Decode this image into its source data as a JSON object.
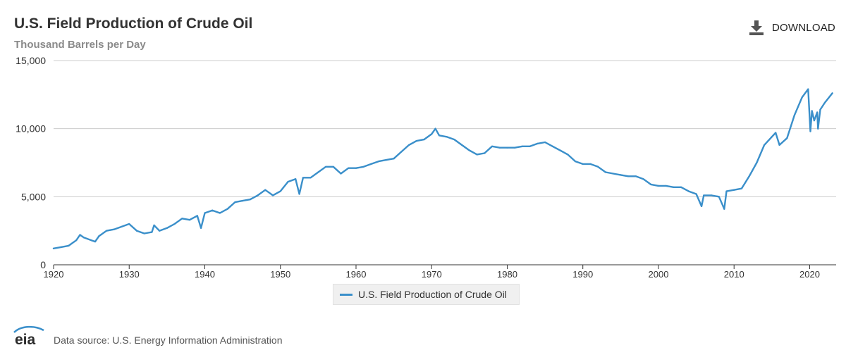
{
  "header": {
    "title": "U.S. Field Production of Crude Oil",
    "subtitle": "Thousand Barrels per Day",
    "download_label": "DOWNLOAD",
    "download_icon": "download-icon"
  },
  "footer": {
    "logo_text": "eia",
    "source": "Data source: U.S. Energy Information Administration"
  },
  "colors": {
    "series": "#3a8fca",
    "grid": "#cccccc",
    "axis": "#333333"
  },
  "chart_data": {
    "type": "line",
    "title": "U.S. Field Production of Crude Oil",
    "subtitle": "Thousand Barrels per Day",
    "xlabel": "",
    "ylabel": "",
    "xlim": [
      1920,
      2023.5
    ],
    "ylim": [
      0,
      15000
    ],
    "x_ticks": [
      1920,
      1930,
      1940,
      1950,
      1960,
      1970,
      1980,
      1990,
      2000,
      2010,
      2020
    ],
    "x_tick_labels": [
      "1920",
      "1930",
      "1940",
      "1950",
      "1960",
      "1970",
      "1980",
      "1990",
      "2000",
      "2010",
      "2020"
    ],
    "y_ticks": [
      0,
      5000,
      10000,
      15000
    ],
    "y_tick_labels": [
      "0",
      "5,000",
      "10,000",
      "15,000"
    ],
    "grid": "horizontal",
    "legend": {
      "position": "bottom-center",
      "entries": [
        "U.S. Field Production of Crude Oil"
      ]
    },
    "series": [
      {
        "name": "U.S. Field Production of Crude Oil",
        "x": [
          1920,
          1921,
          1922,
          1923,
          1923.5,
          1924,
          1925,
          1925.5,
          1926,
          1927,
          1928,
          1929,
          1930,
          1931,
          1932,
          1933,
          1933.3,
          1934,
          1935,
          1936,
          1937,
          1938,
          1939,
          1939.5,
          1940,
          1941,
          1942,
          1943,
          1944,
          1945,
          1946,
          1947,
          1948,
          1949,
          1950,
          1951,
          1952,
          1952.5,
          1953,
          1954,
          1955,
          1956,
          1957,
          1958,
          1959,
          1960,
          1961,
          1962,
          1963,
          1964,
          1965,
          1966,
          1967,
          1968,
          1969,
          1970,
          1970.5,
          1971,
          1972,
          1973,
          1974,
          1975,
          1976,
          1977,
          1978,
          1979,
          1980,
          1981,
          1982,
          1983,
          1984,
          1985,
          1986,
          1987,
          1988,
          1989,
          1990,
          1991,
          1992,
          1993,
          1994,
          1995,
          1996,
          1997,
          1998,
          1999,
          2000,
          2001,
          2002,
          2003,
          2004,
          2005,
          2005.7,
          2006,
          2007,
          2008,
          2008.7,
          2009,
          2010,
          2011,
          2012,
          2013,
          2014,
          2015,
          2015.5,
          2016,
          2017,
          2018,
          2019,
          2019.8,
          2020.1,
          2020.3,
          2020.6,
          2021,
          2021.1,
          2021.4,
          2022,
          2023
        ],
        "values": [
          1200,
          1300,
          1400,
          1800,
          2200,
          2000,
          1800,
          1700,
          2100,
          2500,
          2600,
          2800,
          3000,
          2500,
          2300,
          2400,
          2900,
          2500,
          2700,
          3000,
          3400,
          3300,
          3600,
          2700,
          3800,
          4000,
          3800,
          4100,
          4600,
          4700,
          4800,
          5100,
          5500,
          5100,
          5400,
          6100,
          6300,
          5200,
          6400,
          6400,
          6800,
          7200,
          7200,
          6700,
          7100,
          7100,
          7200,
          7400,
          7600,
          7700,
          7800,
          8300,
          8800,
          9100,
          9200,
          9600,
          10000,
          9500,
          9400,
          9200,
          8800,
          8400,
          8100,
          8200,
          8700,
          8600,
          8600,
          8600,
          8700,
          8700,
          8900,
          9000,
          8700,
          8400,
          8100,
          7600,
          7400,
          7400,
          7200,
          6800,
          6700,
          6600,
          6500,
          6500,
          6300,
          5900,
          5800,
          5800,
          5700,
          5700,
          5400,
          5200,
          4300,
          5100,
          5100,
          5000,
          4100,
          5400,
          5500,
          5600,
          6500,
          7500,
          8800,
          9400,
          9700,
          8800,
          9300,
          11000,
          12300,
          12900,
          9800,
          11300,
          10600,
          11200,
          10000,
          11400,
          11900,
          12600
        ]
      }
    ]
  }
}
